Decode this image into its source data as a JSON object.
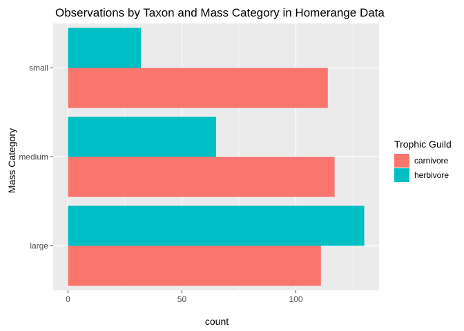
{
  "chart_data": {
    "type": "bar",
    "orientation": "horizontal",
    "title": "Observations by Taxon and Mass Category in Homerange Data",
    "xlabel": "count",
    "ylabel": "Mass Category",
    "categories": [
      "large",
      "medium",
      "small"
    ],
    "series": [
      {
        "name": "carnivore",
        "color": "#F8766D",
        "values": [
          111,
          117,
          114
        ]
      },
      {
        "name": "herbivore",
        "color": "#00BFC4",
        "values": [
          130,
          65,
          32
        ]
      }
    ],
    "xlim": [
      -6.5,
      136.5
    ],
    "xticks": [
      0,
      50,
      100
    ],
    "legend": {
      "title": "Trophic Guild",
      "placement": "right"
    },
    "grid": true,
    "panel_background": "#EBEBEB",
    "grid_color": "#FFFFFF"
  }
}
